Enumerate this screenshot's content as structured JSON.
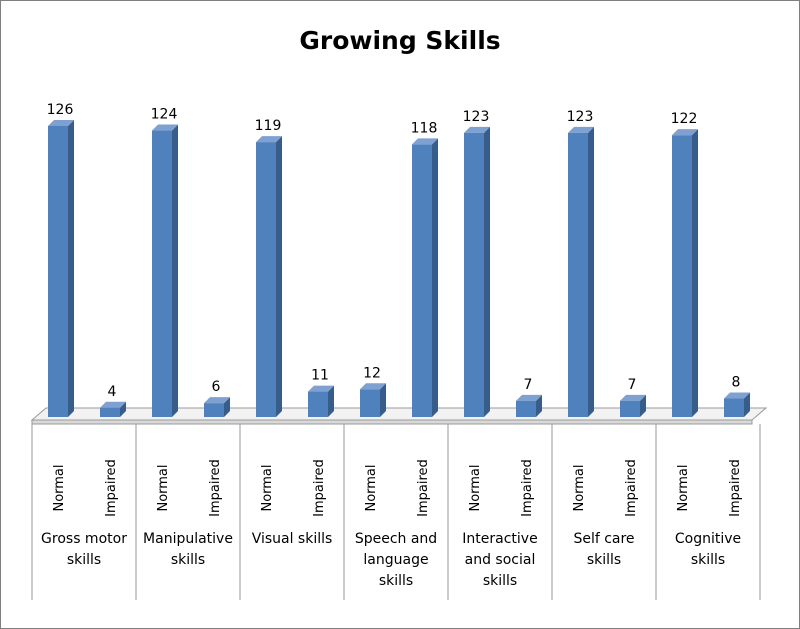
{
  "chart_data": {
    "type": "bar",
    "title": "Growing Skills",
    "xlabel": "",
    "ylabel": "",
    "ylim": [
      0,
      140
    ],
    "grid": false,
    "legend": "none",
    "bar_color": "#4f81bd",
    "groups": [
      {
        "label": [
          "Gross motor",
          "skills"
        ],
        "bars": [
          {
            "category": "Normal",
            "value": 126
          },
          {
            "category": "Impaired",
            "value": 4
          }
        ]
      },
      {
        "label": [
          "Manipulative",
          "skills"
        ],
        "bars": [
          {
            "category": "Normal",
            "value": 124
          },
          {
            "category": "Impaired",
            "value": 6
          }
        ]
      },
      {
        "label": [
          "Visual skills"
        ],
        "bars": [
          {
            "category": "Normal",
            "value": 119
          },
          {
            "category": "Impaired",
            "value": 11
          }
        ]
      },
      {
        "label": [
          "Speech and",
          "language",
          "skills"
        ],
        "bars": [
          {
            "category": "Normal",
            "value": 12
          },
          {
            "category": "Impaired",
            "value": 118
          }
        ]
      },
      {
        "label": [
          "Interactive",
          "and social",
          "skills"
        ],
        "bars": [
          {
            "category": "Normal",
            "value": 123
          },
          {
            "category": "Impaired",
            "value": 7
          }
        ]
      },
      {
        "label": [
          "Self care",
          "skills"
        ],
        "bars": [
          {
            "category": "Normal",
            "value": 123
          },
          {
            "category": "Impaired",
            "value": 7
          }
        ]
      },
      {
        "label": [
          "Cognitive",
          "skills"
        ],
        "bars": [
          {
            "category": "Normal",
            "value": 122
          },
          {
            "category": "Impaired",
            "value": 8
          }
        ]
      }
    ]
  }
}
